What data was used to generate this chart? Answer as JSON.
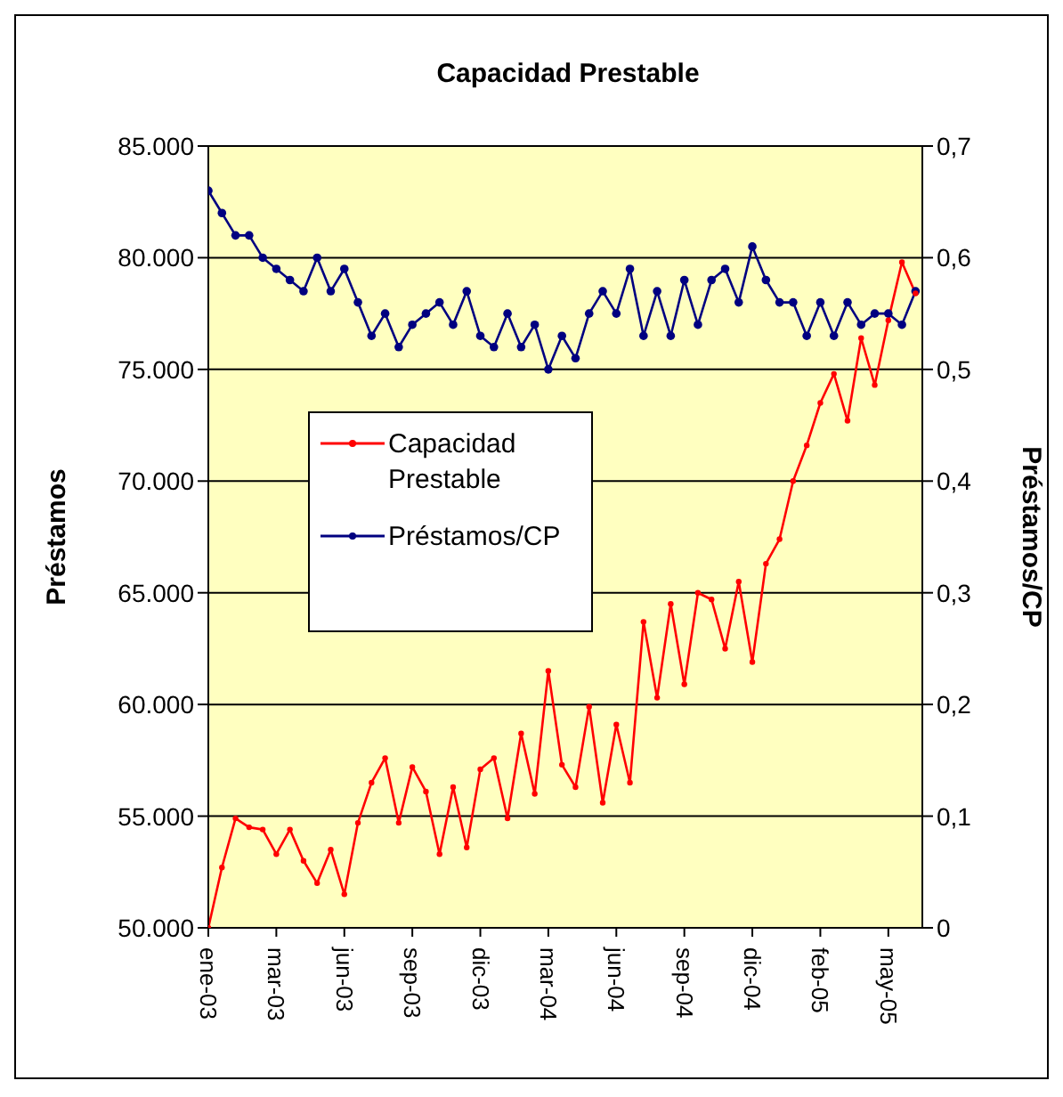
{
  "chart_data": {
    "type": "line",
    "title": "Capacidad Prestable",
    "ylabel": "Préstamos",
    "y2label": "Préstamos/CP",
    "categories": [
      "ene-03",
      null,
      null,
      null,
      null,
      "mar-03",
      null,
      null,
      null,
      null,
      "jun-03",
      null,
      null,
      null,
      null,
      "sep-03",
      null,
      null,
      null,
      null,
      "dic-03",
      null,
      null,
      null,
      null,
      "mar-04",
      null,
      null,
      null,
      null,
      "jun-04",
      null,
      null,
      null,
      null,
      "sep-04",
      null,
      null,
      null,
      null,
      "dic-04",
      null,
      null,
      null,
      null,
      "feb-05",
      null,
      null,
      null,
      null,
      "may-05",
      null,
      null
    ],
    "ylim": [
      50000,
      85000
    ],
    "yticks": [
      {
        "value": 50000,
        "label": "50.000"
      },
      {
        "value": 55000,
        "label": "55.000"
      },
      {
        "value": 60000,
        "label": "60.000"
      },
      {
        "value": 65000,
        "label": "65.000"
      },
      {
        "value": 70000,
        "label": "70.000"
      },
      {
        "value": 75000,
        "label": "75.000"
      },
      {
        "value": 80000,
        "label": "80.000"
      },
      {
        "value": 85000,
        "label": "85.000"
      }
    ],
    "y2lim": [
      0,
      0.7
    ],
    "y2ticks": [
      0,
      {
        "value": 0.1,
        "label": "0,1"
      },
      {
        "value": 0.2,
        "label": "0,2"
      },
      {
        "value": 0.3,
        "label": "0,3"
      },
      {
        "value": 0.4,
        "label": "0,4"
      },
      {
        "value": 0.5,
        "label": "0,5"
      },
      {
        "value": 0.6,
        "label": "0,6"
      },
      {
        "value": 0.7,
        "label": "0,7"
      }
    ],
    "grid": "y",
    "legend": "center",
    "marker": "circle",
    "line_style": "solid",
    "series": [
      {
        "name": "Capacidad Prestable",
        "color": "#ff0000",
        "values": [
          50000,
          52700,
          54900,
          54500,
          54400,
          53300,
          54400,
          53000,
          52000,
          53500,
          51500,
          54700,
          56500,
          57600,
          54700,
          57200,
          56100,
          53300,
          56300,
          53600,
          57100,
          57600,
          54900,
          58700,
          56000,
          61500,
          57300,
          56300,
          59900,
          55600,
          59100,
          56500,
          63700,
          60300,
          64500,
          60900,
          65000,
          64700,
          62500,
          65500,
          61900,
          66300,
          67400,
          70000,
          71600,
          73500,
          74800,
          72700,
          76400,
          74300,
          77200,
          79800,
          78400
        ]
      },
      {
        "name": "Préstamos/CP",
        "color": "#000080",
        "axis": "y2",
        "values": [
          0.66,
          0.64,
          0.62,
          0.62,
          0.6,
          0.59,
          0.58,
          0.57,
          0.6,
          0.57,
          0.59,
          0.56,
          0.53,
          0.55,
          0.52,
          0.54,
          0.55,
          0.56,
          0.54,
          0.57,
          0.53,
          0.52,
          0.55,
          0.52,
          0.54,
          0.5,
          0.53,
          0.51,
          0.55,
          0.57,
          0.55,
          0.59,
          0.53,
          0.57,
          0.53,
          0.58,
          0.54,
          0.58,
          0.59,
          0.56,
          0.61,
          0.58,
          0.56,
          0.56,
          0.53,
          0.56,
          0.53,
          0.56,
          0.54,
          0.55,
          0.55,
          0.54,
          0.57
        ]
      }
    ]
  }
}
